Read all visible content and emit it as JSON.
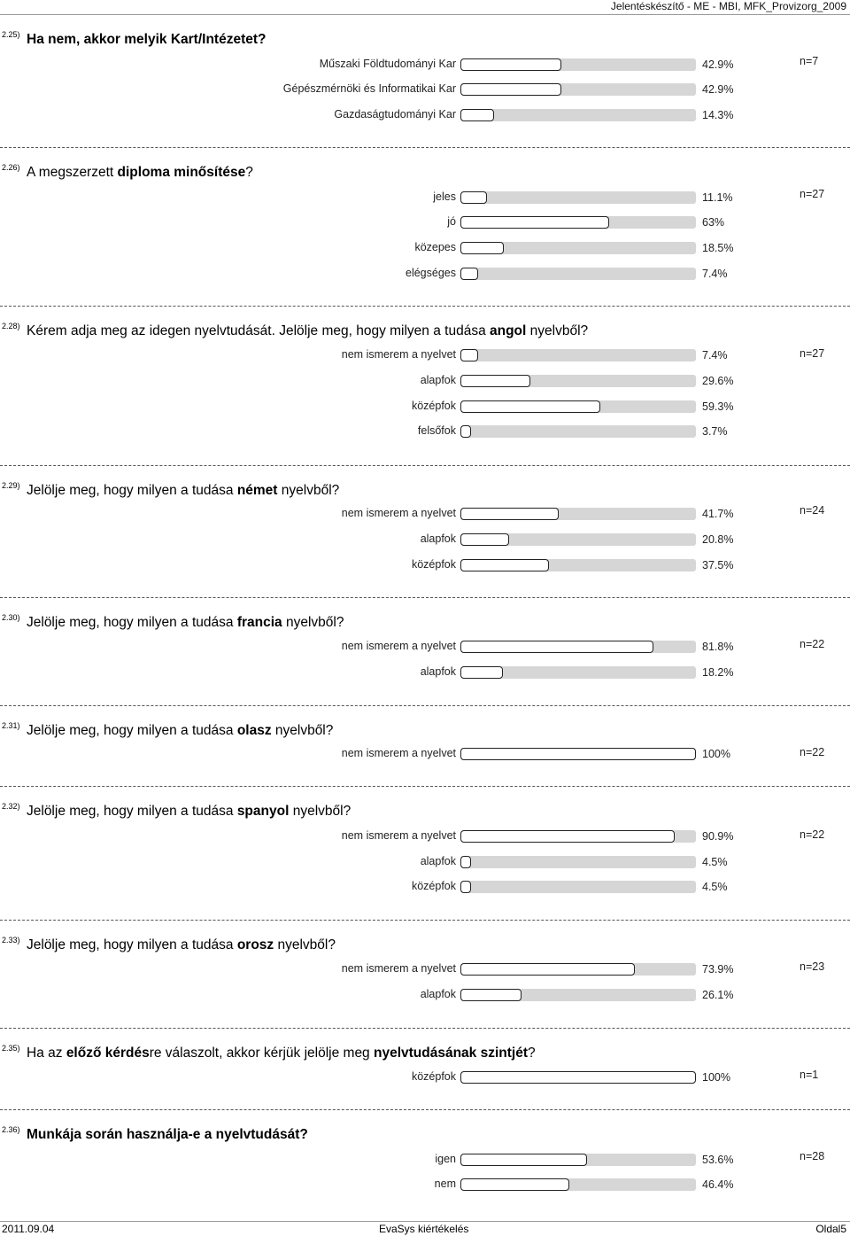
{
  "header": "Jelentéskészítő - ME - MBI, MFK_Provizorg_2009",
  "footer": {
    "date": "2011.09.04",
    "center": "EvaSys kiértékelés",
    "page": "Oldal5"
  },
  "questions": [
    {
      "num": "2.25)",
      "title_parts": [
        {
          "t": "Ha nem, akkor melyik Kart/Intézetet?",
          "b": true
        }
      ],
      "n": "n=7",
      "items": [
        {
          "label": "Műszaki Földtudományi Kar",
          "pct": "42.9%",
          "value": 42.9
        },
        {
          "label": "Gépészmérnöki és Informatikai Kar",
          "pct": "42.9%",
          "value": 42.9
        },
        {
          "label": "Gazdaságtudományi Kar",
          "pct": "14.3%",
          "value": 14.3
        }
      ]
    },
    {
      "num": "2.26)",
      "title_parts": [
        {
          "t": "A megszerzett ",
          "b": false
        },
        {
          "t": "diploma minősítése",
          "b": true
        },
        {
          "t": "?",
          "b": false
        }
      ],
      "n": "n=27",
      "items": [
        {
          "label": "jeles",
          "pct": "11.1%",
          "value": 11.1
        },
        {
          "label": "jó",
          "pct": "63%",
          "value": 63
        },
        {
          "label": "közepes",
          "pct": "18.5%",
          "value": 18.5
        },
        {
          "label": "elégséges",
          "pct": "7.4%",
          "value": 7.4
        }
      ]
    },
    {
      "num": "2.28)",
      "title_parts": [
        {
          "t": "Kérem adja meg az idegen nyelvtudását. Jelölje meg, hogy milyen a tudása ",
          "b": false
        },
        {
          "t": "angol",
          "b": true
        },
        {
          "t": " nyelvből?",
          "b": false
        }
      ],
      "n": "n=27",
      "items": [
        {
          "label": "nem ismerem a nyelvet",
          "pct": "7.4%",
          "value": 7.4
        },
        {
          "label": "alapfok",
          "pct": "29.6%",
          "value": 29.6
        },
        {
          "label": "középfok",
          "pct": "59.3%",
          "value": 59.3
        },
        {
          "label": "felsőfok",
          "pct": "3.7%",
          "value": 3.7
        }
      ]
    },
    {
      "num": "2.29)",
      "title_parts": [
        {
          "t": "Jelölje meg, hogy milyen a tudása ",
          "b": false
        },
        {
          "t": "német",
          "b": true
        },
        {
          "t": " nyelvből?",
          "b": false
        }
      ],
      "n": "n=24",
      "items": [
        {
          "label": "nem ismerem a nyelvet",
          "pct": "41.7%",
          "value": 41.7
        },
        {
          "label": "alapfok",
          "pct": "20.8%",
          "value": 20.8
        },
        {
          "label": "középfok",
          "pct": "37.5%",
          "value": 37.5
        }
      ]
    },
    {
      "num": "2.30)",
      "title_parts": [
        {
          "t": "Jelölje meg, hogy milyen a tudása ",
          "b": false
        },
        {
          "t": "francia",
          "b": true
        },
        {
          "t": " nyelvből?",
          "b": false
        }
      ],
      "n": "n=22",
      "items": [
        {
          "label": "nem ismerem a nyelvet",
          "pct": "81.8%",
          "value": 81.8
        },
        {
          "label": "alapfok",
          "pct": "18.2%",
          "value": 18.2
        }
      ]
    },
    {
      "num": "2.31)",
      "title_parts": [
        {
          "t": "Jelölje meg, hogy milyen a tudása ",
          "b": false
        },
        {
          "t": "olasz",
          "b": true
        },
        {
          "t": " nyelvből?",
          "b": false
        }
      ],
      "n": "n=22",
      "items": [
        {
          "label": "nem ismerem a nyelvet",
          "pct": "100%",
          "value": 100
        }
      ]
    },
    {
      "num": "2.32)",
      "title_parts": [
        {
          "t": "Jelölje meg, hogy milyen a tudása ",
          "b": false
        },
        {
          "t": "spanyol",
          "b": true
        },
        {
          "t": " nyelvből?",
          "b": false
        }
      ],
      "n": "n=22",
      "items": [
        {
          "label": "nem ismerem a nyelvet",
          "pct": "90.9%",
          "value": 90.9
        },
        {
          "label": "alapfok",
          "pct": "4.5%",
          "value": 4.5
        },
        {
          "label": "középfok",
          "pct": "4.5%",
          "value": 4.5
        }
      ]
    },
    {
      "num": "2.33)",
      "title_parts": [
        {
          "t": "Jelölje meg, hogy milyen a tudása ",
          "b": false
        },
        {
          "t": "orosz",
          "b": true
        },
        {
          "t": " nyelvből?",
          "b": false
        }
      ],
      "n": "n=23",
      "items": [
        {
          "label": "nem ismerem a nyelvet",
          "pct": "73.9%",
          "value": 73.9
        },
        {
          "label": "alapfok",
          "pct": "26.1%",
          "value": 26.1
        }
      ]
    },
    {
      "num": "2.35)",
      "title_parts": [
        {
          "t": "Ha az ",
          "b": false
        },
        {
          "t": "előző kérdés",
          "b": true
        },
        {
          "t": "re válaszolt, akkor kérjük jelölje meg ",
          "b": false
        },
        {
          "t": "nyelvtudásának szintjét",
          "b": true
        },
        {
          "t": "?",
          "b": false
        }
      ],
      "n": "n=1",
      "items": [
        {
          "label": "középfok",
          "pct": "100%",
          "value": 100
        }
      ]
    },
    {
      "num": "2.36)",
      "title_parts": [
        {
          "t": "Munkája során használja-e a nyelvtudását?",
          "b": true
        }
      ],
      "n": "n=28",
      "items": [
        {
          "label": "igen",
          "pct": "53.6%",
          "value": 53.6
        },
        {
          "label": "nem",
          "pct": "46.4%",
          "value": 46.4
        }
      ]
    }
  ]
}
